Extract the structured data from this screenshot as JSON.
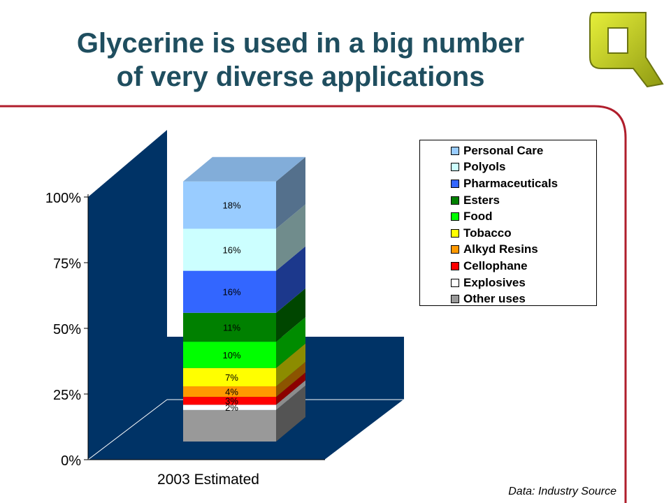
{
  "slide": {
    "title_line1": "Glycerine is used in a big number",
    "title_line2": "of very diverse applications",
    "source": "Data: Industry Source",
    "title_color": "#1f4e5f",
    "divider_color": "#b01e2c"
  },
  "chart_data": {
    "type": "bar",
    "stacked": true,
    "three_d": true,
    "categories": [
      "2003 Estimated"
    ],
    "y_ticks": [
      "0%",
      "25%",
      "50%",
      "75%",
      "100%"
    ],
    "ylim": [
      0,
      100
    ],
    "legend_position": "top-right",
    "background_color": "#003366",
    "series": [
      {
        "name": "Other uses",
        "values": [
          12
        ],
        "label": "",
        "color": "#999999"
      },
      {
        "name": "Explosives",
        "values": [
          2
        ],
        "label": "2%",
        "color": "#ffffff"
      },
      {
        "name": "Cellophane",
        "values": [
          3
        ],
        "label": "3%",
        "color": "#ff0000"
      },
      {
        "name": "Alkyd Resins",
        "values": [
          4
        ],
        "label": "4%",
        "color": "#ff9900"
      },
      {
        "name": "Tobacco",
        "values": [
          7
        ],
        "label": "7%",
        "color": "#ffff00"
      },
      {
        "name": "Food",
        "values": [
          10
        ],
        "label": "10%",
        "color": "#00ff00"
      },
      {
        "name": "Esters",
        "values": [
          11
        ],
        "label": "11%",
        "color": "#008000"
      },
      {
        "name": "Pharmaceuticals",
        "values": [
          16
        ],
        "label": "16%",
        "color": "#3366ff"
      },
      {
        "name": "Polyols",
        "values": [
          16
        ],
        "label": "16%",
        "color": "#ccffff"
      },
      {
        "name": "Personal Care",
        "values": [
          18
        ],
        "label": "18%",
        "color": "#99ccff"
      }
    ],
    "legend_order": [
      "Personal Care",
      "Polyols",
      "Pharmaceuticals",
      "Esters",
      "Food",
      "Tobacco",
      "Alkyd Resins",
      "Cellophane",
      "Explosives",
      "Other uses"
    ]
  }
}
